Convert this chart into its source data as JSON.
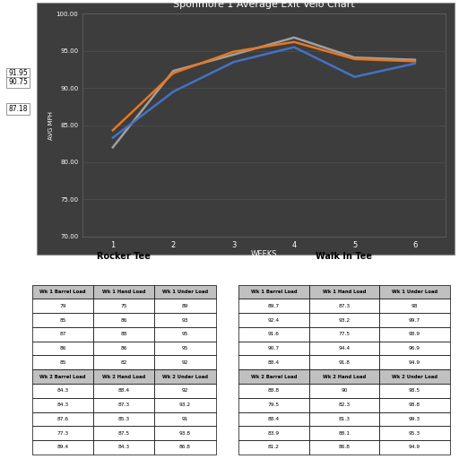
{
  "title": "Spohmore 1 Average Exit Velo Chart",
  "xlabel": "WEEKS",
  "ylabel": "AVG MPH",
  "xlim": [
    0.5,
    6.5
  ],
  "ylim": [
    70,
    100
  ],
  "yticks": [
    70.0,
    75.0,
    80.0,
    85.0,
    90.0,
    95.0,
    100.0
  ],
  "xticks": [
    1,
    2,
    3,
    4,
    5,
    6
  ],
  "weeks": [
    1,
    2,
    3,
    4,
    5,
    6
  ],
  "line_orange": [
    84.3,
    92.0,
    94.9,
    96.2,
    93.9,
    93.6
  ],
  "line_blue": [
    83.3,
    89.5,
    93.5,
    95.5,
    91.5,
    93.3
  ],
  "line_gray": [
    82.0,
    92.3,
    94.5,
    96.8,
    94.1,
    93.8
  ],
  "color_orange": "#E87722",
  "color_blue": "#4472C4",
  "color_gray": "#A0A0A0",
  "bg_chart": "#3D3D3D",
  "bg_fig": "#2B2B2B",
  "text_color": "#FFFFFF",
  "grid_color": "#555555",
  "annot_labels": [
    "91.95",
    "87.18",
    "90.75"
  ],
  "annot_vals": [
    91.95,
    87.18,
    90.75
  ],
  "rocker_tee_title": "Rocker Tee",
  "walk_in_tee_title": "Walk In Tee",
  "rocker_headers1": [
    "Wk 1 Barrel Load",
    "Wk 1 Hand Load",
    "Wk 1 Under Load"
  ],
  "rocker_data_wk1": [
    [
      "79",
      "75",
      "89"
    ],
    [
      "85",
      "86",
      "93"
    ],
    [
      "87",
      "88",
      "95"
    ],
    [
      "86",
      "86",
      "95"
    ],
    [
      "85",
      "82",
      "92"
    ]
  ],
  "rocker_headers2": [
    "Wk 2 Barrel Load",
    "Wk 2 Hand Load",
    "Wk 2 Under Load"
  ],
  "rocker_data_wk2": [
    [
      "84.3",
      "88.4",
      "92"
    ],
    [
      "84.3",
      "87.3",
      "93.2"
    ],
    [
      "87.6",
      "85.3",
      "91"
    ],
    [
      "77.3",
      "87.5",
      "93.8"
    ],
    [
      "89.4",
      "84.3",
      "86.8"
    ]
  ],
  "walk_headers1": [
    "Wk 1 Barrel Load",
    "Wk 1 Hand Load",
    "Wk 1 Under Load"
  ],
  "walk_data_wk1": [
    [
      "89.7",
      "87.3",
      "98"
    ],
    [
      "92.4",
      "93.2",
      "99.7"
    ],
    [
      "91.6",
      "77.5",
      "98.9"
    ],
    [
      "90.7",
      "94.4",
      "96.9"
    ],
    [
      "88.4",
      "91.8",
      "94.9"
    ]
  ],
  "walk_headers2": [
    "Wk 2 Barrel Load",
    "Wk 2 Hand Load",
    "Wk 2 Under Load"
  ],
  "walk_data_wk2": [
    [
      "88.8",
      "90",
      "98.5"
    ],
    [
      "79.5",
      "82.3",
      "98.8"
    ],
    [
      "88.4",
      "81.3",
      "99.3"
    ],
    [
      "83.9",
      "88.1",
      "95.3"
    ],
    [
      "81.2",
      "86.8",
      "94.9"
    ]
  ]
}
